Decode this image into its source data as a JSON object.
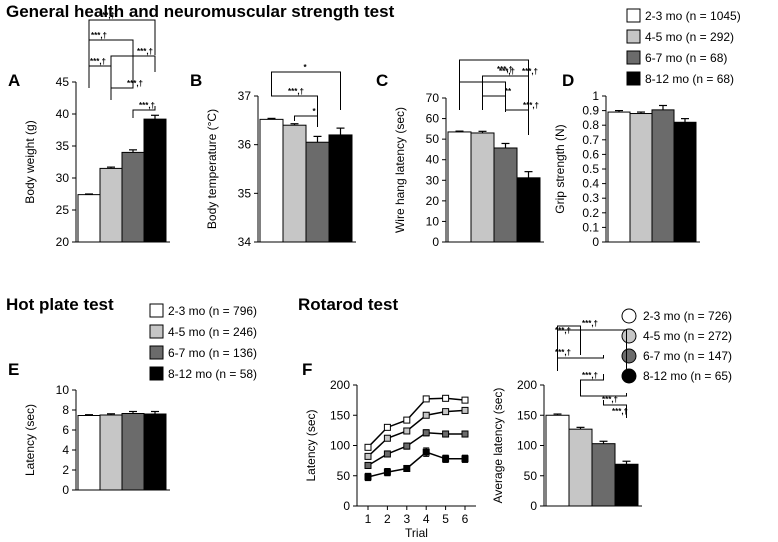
{
  "sections": {
    "general": "General health and neuromuscular strength test",
    "hotplate": "Hot plate test",
    "rotarod": "Rotarod test"
  },
  "colors": {
    "g1": "#ffffff",
    "g2": "#c6c6c6",
    "g3": "#6b6b6b",
    "g4": "#000000"
  },
  "legends": {
    "general": [
      "2-3 mo (n = 1045)",
      "4-5 mo (n = 292)",
      "6-7 mo (n = 68)",
      "8-12 mo (n = 68)"
    ],
    "hotplate": [
      "2-3 mo (n = 796)",
      "4-5 mo  (n = 246)",
      "6-7 mo (n = 136)",
      "8-12 mo (n = 58)"
    ],
    "rotarod": [
      "2-3 mo (n = 726)",
      "4-5 mo  (n = 272)",
      "6-7 mo (n = 147)",
      "8-12 mo (n = 65)"
    ]
  },
  "chart_data": [
    {
      "id": "A",
      "type": "bar",
      "panel_label": "A",
      "categories": [
        "2-3 mo",
        "4-5 mo",
        "6-7 mo",
        "8-12 mo"
      ],
      "values": [
        27.4,
        31.5,
        34.0,
        39.2
      ],
      "errors": [
        0.1,
        0.2,
        0.4,
        0.6
      ],
      "ylabel": "Body weight (g)",
      "ylim": [
        20,
        45
      ],
      "yticks": [
        "20",
        "25",
        "30",
        "35",
        "40",
        "45"
      ],
      "significance": [
        {
          "from": 0,
          "to": 1,
          "label": "***,†"
        },
        {
          "from": 0,
          "to": 2,
          "label": "***,†"
        },
        {
          "from": 0,
          "to": 3,
          "label": "***,†"
        },
        {
          "from": 1,
          "to": 2,
          "label": "***,†"
        },
        {
          "from": 1,
          "to": 3,
          "label": "***,†"
        },
        {
          "from": 2,
          "to": 3,
          "label": "***,†"
        }
      ]
    },
    {
      "id": "B",
      "type": "bar",
      "panel_label": "B",
      "categories": [
        "2-3 mo",
        "4-5 mo",
        "6-7 mo",
        "8-12 mo"
      ],
      "values": [
        36.52,
        36.4,
        36.05,
        36.2
      ],
      "errors": [
        0.02,
        0.03,
        0.12,
        0.14
      ],
      "ylabel": "Body temperature (°C)",
      "ylim": [
        34,
        37
      ],
      "yticks": [
        "34",
        "35",
        "36",
        "37"
      ],
      "significance": [
        {
          "from": 0,
          "to": 3,
          "label": "*"
        },
        {
          "from": 0,
          "to": 2,
          "label": "***,†"
        },
        {
          "from": 1,
          "to": 2,
          "label": "*"
        }
      ]
    },
    {
      "id": "C",
      "type": "bar",
      "panel_label": "C",
      "categories": [
        "2-3 mo",
        "4-5 mo",
        "6-7 mo",
        "8-12 mo"
      ],
      "values": [
        53.5,
        53.0,
        45.7,
        31.2
      ],
      "errors": [
        0.4,
        0.8,
        2.2,
        3.0
      ],
      "ylabel": "Wire hang latency (sec)",
      "ylim": [
        0,
        70
      ],
      "yticks": [
        "0",
        "10",
        "20",
        "30",
        "40",
        "50",
        "60",
        "70"
      ],
      "significance": [
        {
          "from": 0,
          "to": 3,
          "label": "***,†"
        },
        {
          "from": 1,
          "to": 3,
          "label": "***,†"
        },
        {
          "from": 0,
          "to": 2,
          "label": "***,†"
        },
        {
          "from": 1,
          "to": 2,
          "label": "**"
        },
        {
          "from": 2,
          "to": 3,
          "label": "***,†"
        }
      ]
    },
    {
      "id": "D",
      "type": "bar",
      "panel_label": "D",
      "categories": [
        "2-3 mo",
        "4-5 mo",
        "6-7 mo",
        "8-12 mo"
      ],
      "values": [
        0.89,
        0.88,
        0.905,
        0.82
      ],
      "errors": [
        0.01,
        0.01,
        0.03,
        0.025
      ],
      "ylabel": "Grip strength (N)",
      "ylim": [
        0,
        1
      ],
      "yticks": [
        "0",
        "0.1",
        "0.2",
        "0.3",
        "0.4",
        "0.5",
        "0.6",
        "0.7",
        "0.8",
        "0.9",
        "1"
      ],
      "significance": []
    },
    {
      "id": "E",
      "type": "bar",
      "panel_label": "E",
      "categories": [
        "2-3 mo",
        "4-5 mo",
        "6-7 mo",
        "8-12 mo"
      ],
      "values": [
        7.45,
        7.5,
        7.65,
        7.6
      ],
      "errors": [
        0.08,
        0.12,
        0.2,
        0.25
      ],
      "ylabel": "Latency (sec)",
      "ylim": [
        0,
        10
      ],
      "yticks": [
        "0",
        "2",
        "4",
        "6",
        "8",
        "10"
      ],
      "significance": []
    },
    {
      "id": "F1",
      "type": "line",
      "panel_label": "F",
      "x": [
        1,
        2,
        3,
        4,
        5,
        6
      ],
      "series": [
        {
          "name": "2-3 mo",
          "values": [
            97,
            130,
            142,
            177,
            178,
            175
          ],
          "errors": [
            3,
            3,
            3,
            3,
            3,
            3
          ]
        },
        {
          "name": "4-5 mo",
          "values": [
            82,
            112,
            124,
            150,
            156,
            158
          ],
          "errors": [
            4,
            4,
            4,
            4,
            4,
            4
          ]
        },
        {
          "name": "6-7 mo",
          "values": [
            67,
            86,
            99,
            121,
            119,
            119
          ],
          "errors": [
            5,
            5,
            5,
            5,
            5,
            5
          ]
        },
        {
          "name": "8-12 mo",
          "values": [
            48,
            56,
            62,
            89,
            78,
            78
          ],
          "errors": [
            6,
            6,
            5,
            7,
            6,
            6
          ]
        }
      ],
      "xlabel": "Trial",
      "ylabel": "Latency (sec)",
      "ylim": [
        0,
        200
      ],
      "yticks": [
        "0",
        "50",
        "100",
        "150",
        "200"
      ],
      "xticks": [
        "1",
        "2",
        "3",
        "4",
        "5",
        "6"
      ]
    },
    {
      "id": "F2",
      "type": "bar",
      "panel_label": "",
      "categories": [
        "2-3 mo",
        "4-5 mo",
        "6-7 mo",
        "8-12 mo"
      ],
      "values": [
        150,
        127,
        103,
        69
      ],
      "errors": [
        2,
        3,
        4,
        5
      ],
      "ylabel": "Average latency (sec)",
      "ylim": [
        0,
        200
      ],
      "yticks": [
        "0",
        "50",
        "100",
        "150",
        "200"
      ],
      "significance": [
        {
          "from": 0,
          "to": 1,
          "label": "***,†"
        },
        {
          "from": 0,
          "to": 2,
          "label": "***,†"
        },
        {
          "from": 0,
          "to": 3,
          "label": "***,†"
        },
        {
          "from": 1,
          "to": 2,
          "label": "***,†"
        },
        {
          "from": 1,
          "to": 3,
          "label": "***,†"
        },
        {
          "from": 2,
          "to": 3,
          "label": "***,†"
        }
      ]
    }
  ]
}
